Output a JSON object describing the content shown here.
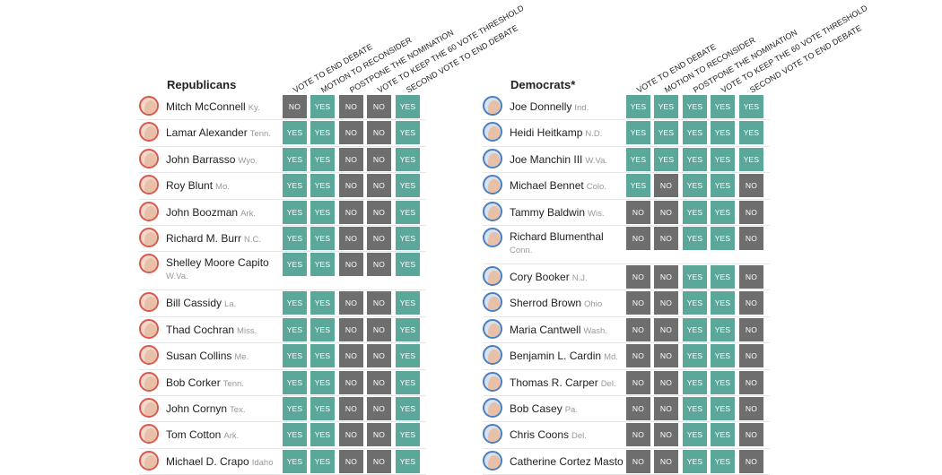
{
  "columns": [
    "VOTE TO END DEBATE",
    "MOTION TO RECONSIDER",
    "POSTPONE THE NOMINATION",
    "VOTE TO KEEP THE 60 VOTE THRESHOLD",
    "SECOND VOTE TO END DEBATE"
  ],
  "republicans": {
    "title": "Republicans",
    "members": [
      {
        "name": "Mitch McConnell",
        "state": "Ky.",
        "votes": [
          "NO",
          "YES",
          "NO",
          "NO",
          "YES"
        ]
      },
      {
        "name": "Lamar Alexander",
        "state": "Tenn.",
        "votes": [
          "YES",
          "YES",
          "NO",
          "NO",
          "YES"
        ]
      },
      {
        "name": "John Barrasso",
        "state": "Wyo.",
        "votes": [
          "YES",
          "YES",
          "NO",
          "NO",
          "YES"
        ]
      },
      {
        "name": "Roy Blunt",
        "state": "Mo.",
        "votes": [
          "YES",
          "YES",
          "NO",
          "NO",
          "YES"
        ]
      },
      {
        "name": "John Boozman",
        "state": "Ark.",
        "votes": [
          "YES",
          "YES",
          "NO",
          "NO",
          "YES"
        ]
      },
      {
        "name": "Richard M. Burr",
        "state": "N.C.",
        "votes": [
          "YES",
          "YES",
          "NO",
          "NO",
          "YES"
        ]
      },
      {
        "name": "Shelley Moore Capito",
        "state": "W.Va.",
        "votes": [
          "YES",
          "YES",
          "NO",
          "NO",
          "YES"
        ],
        "wrap": true
      },
      {
        "name": "Bill Cassidy",
        "state": "La.",
        "votes": [
          "YES",
          "YES",
          "NO",
          "NO",
          "YES"
        ]
      },
      {
        "name": "Thad Cochran",
        "state": "Miss.",
        "votes": [
          "YES",
          "YES",
          "NO",
          "NO",
          "YES"
        ]
      },
      {
        "name": "Susan Collins",
        "state": "Me.",
        "votes": [
          "YES",
          "YES",
          "NO",
          "NO",
          "YES"
        ]
      },
      {
        "name": "Bob Corker",
        "state": "Tenn.",
        "votes": [
          "YES",
          "YES",
          "NO",
          "NO",
          "YES"
        ]
      },
      {
        "name": "John Cornyn",
        "state": "Tex.",
        "votes": [
          "YES",
          "YES",
          "NO",
          "NO",
          "YES"
        ]
      },
      {
        "name": "Tom Cotton",
        "state": "Ark.",
        "votes": [
          "YES",
          "YES",
          "NO",
          "NO",
          "YES"
        ]
      },
      {
        "name": "Michael D. Crapo",
        "state": "Idaho",
        "votes": [
          "YES",
          "YES",
          "NO",
          "NO",
          "YES"
        ]
      }
    ]
  },
  "democrats": {
    "title": "Democrats*",
    "members": [
      {
        "name": "Joe Donnelly",
        "state": "Ind.",
        "votes": [
          "YES",
          "YES",
          "YES",
          "YES",
          "YES"
        ]
      },
      {
        "name": "Heidi Heitkamp",
        "state": "N.D.",
        "votes": [
          "YES",
          "YES",
          "YES",
          "YES",
          "YES"
        ]
      },
      {
        "name": "Joe Manchin III",
        "state": "W.Va.",
        "votes": [
          "YES",
          "YES",
          "YES",
          "YES",
          "YES"
        ]
      },
      {
        "name": "Michael Bennet",
        "state": "Colo.",
        "votes": [
          "YES",
          "NO",
          "YES",
          "YES",
          "NO"
        ]
      },
      {
        "name": "Tammy Baldwin",
        "state": "Wis.",
        "votes": [
          "NO",
          "NO",
          "YES",
          "YES",
          "NO"
        ]
      },
      {
        "name": "Richard Blumenthal",
        "state": "Conn.",
        "votes": [
          "NO",
          "NO",
          "YES",
          "YES",
          "NO"
        ],
        "wrap": true
      },
      {
        "name": "Cory Booker",
        "state": "N.J.",
        "votes": [
          "NO",
          "NO",
          "YES",
          "YES",
          "NO"
        ]
      },
      {
        "name": "Sherrod Brown",
        "state": "Ohio",
        "votes": [
          "NO",
          "NO",
          "YES",
          "YES",
          "NO"
        ]
      },
      {
        "name": "Maria Cantwell",
        "state": "Wash.",
        "votes": [
          "NO",
          "NO",
          "YES",
          "YES",
          "NO"
        ]
      },
      {
        "name": "Benjamin L. Cardin",
        "state": "Md.",
        "votes": [
          "NO",
          "NO",
          "YES",
          "YES",
          "NO"
        ]
      },
      {
        "name": "Thomas R. Carper",
        "state": "Del.",
        "votes": [
          "NO",
          "NO",
          "YES",
          "YES",
          "NO"
        ]
      },
      {
        "name": "Bob Casey",
        "state": "Pa.",
        "votes": [
          "NO",
          "NO",
          "YES",
          "YES",
          "NO"
        ]
      },
      {
        "name": "Chris Coons",
        "state": "Del.",
        "votes": [
          "NO",
          "NO",
          "YES",
          "YES",
          "NO"
        ]
      },
      {
        "name": "Catherine Cortez Masto",
        "state": "",
        "votes": [
          "NO",
          "NO",
          "YES",
          "YES",
          "NO"
        ]
      }
    ]
  },
  "colors": {
    "yes": "#5ba89a",
    "no": "#6e6e6e",
    "rep_ring": "#d9594c",
    "dem_ring": "#4a7fc1"
  }
}
